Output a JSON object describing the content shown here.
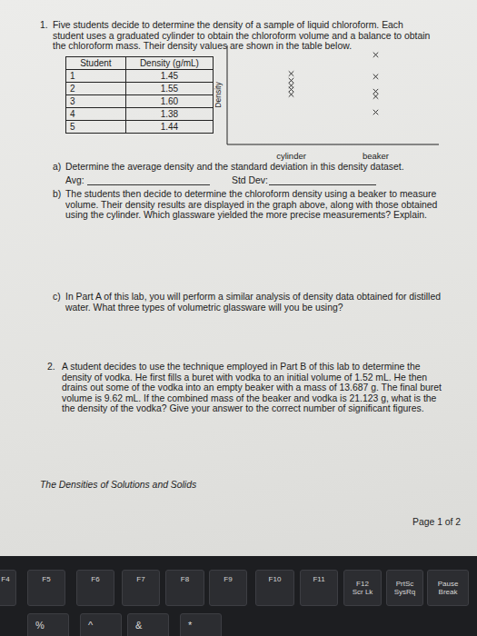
{
  "question1": {
    "number": "1.",
    "lines": [
      "Five students decide to determine the density of a sample of liquid chloroform.  Each",
      "student uses a graduated cylinder to obtain the chloroform volume and a balance to obtain",
      "the chloroform mass.  Their density values are shown in the table below."
    ],
    "table": {
      "columns": [
        "Student",
        "Density (g/mL)"
      ],
      "rows": [
        [
          "1",
          "1.45"
        ],
        [
          "2",
          "1.55"
        ],
        [
          "3",
          "1.60"
        ],
        [
          "4",
          "1.38"
        ],
        [
          "5",
          "1.44"
        ]
      ]
    },
    "part_a": {
      "label": "a)",
      "lines": [
        "Determine the average density and the standard deviation in this density dataset."
      ],
      "avg": "Avg:",
      "std": "Std Dev:"
    },
    "part_b": {
      "label": "b)",
      "lines": [
        "The students then decide to determine the chloroform density using a beaker to measure",
        "volume.  Their density results are displayed in the graph above, along with those obtained",
        "using the cylinder.  Which glassware yielded the more precise measurements?  Explain."
      ]
    },
    "part_c": {
      "label": "c)",
      "lines": [
        "In Part A of this lab, you will perform a similar analysis of density data obtained for distilled",
        "water.  What three types of volumetric glassware will you be using?"
      ]
    }
  },
  "chart_data": {
    "type": "scatter",
    "y_label": "Density",
    "categories": [
      "cylinder",
      "beaker"
    ],
    "values": [
      [
        7.2,
        6.5,
        6.0,
        5.6,
        5.1
      ],
      [
        9.1,
        6.9,
        5.4,
        4.9,
        3.3
      ]
    ],
    "ylim": [
      0,
      10
    ],
    "yticks": [],
    "tick_labels": "x",
    "marker": "x",
    "color": "#333333"
  },
  "question2": {
    "number": "2.",
    "lines": [
      "A student decides to use the technique employed in Part B of this lab to determine the",
      "density of vodka.  He first fills a buret with vodka to an initial volume of 1.52 mL.  He then",
      "drains out some of the vodka into an empty beaker with a mass of 13.687 g.  The final buret",
      "volume is 9.62 mL.  If the combined mass of the beaker and vodka is 21.123 g, what is the",
      "the density of the vodka?  Give your answer to the correct number of significant figures."
    ]
  },
  "footer": {
    "title": "The Densities of Solutions and Solids",
    "page": "Page 1 of 2"
  },
  "keyboard": {
    "function_row": [
      {
        "label": "F4"
      },
      {
        "label": "F5"
      },
      {
        "label": "F6"
      },
      {
        "label": "F7"
      },
      {
        "label": "F8"
      },
      {
        "label": "F9"
      },
      {
        "label": "F10"
      },
      {
        "label": "F11"
      },
      {
        "label": "F12",
        "sub": "Scr Lk"
      },
      {
        "label": "PrtSc",
        "sub": "SysRq"
      },
      {
        "label": "Pause",
        "sub": "Break"
      }
    ],
    "number_row": [
      "%",
      "^",
      "&",
      "*"
    ]
  }
}
